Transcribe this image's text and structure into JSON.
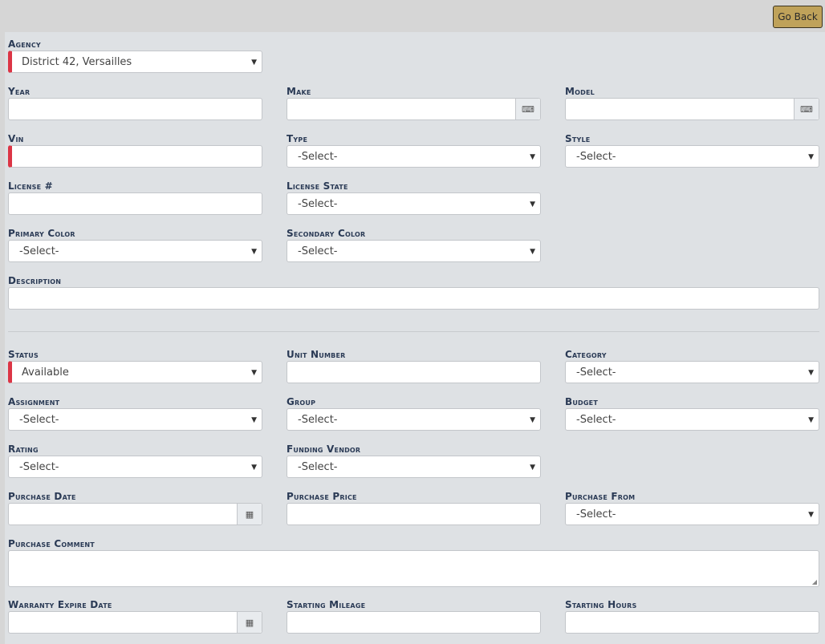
{
  "header": {
    "go_back": "Go Back"
  },
  "fields": {
    "agency": {
      "label": "Agency",
      "value": "District 42, Versailles"
    },
    "year": {
      "label": "Year",
      "value": ""
    },
    "make": {
      "label": "Make",
      "value": ""
    },
    "model": {
      "label": "Model",
      "value": ""
    },
    "vin": {
      "label": "Vin",
      "value": ""
    },
    "type": {
      "label": "Type",
      "value": "-Select-"
    },
    "style": {
      "label": "Style",
      "value": "-Select-"
    },
    "license": {
      "label": "License #",
      "value": ""
    },
    "license_state": {
      "label": "License State",
      "value": "-Select-"
    },
    "primary_color": {
      "label": "Primary Color",
      "value": "-Select-"
    },
    "secondary_color": {
      "label": "Secondary Color",
      "value": "-Select-"
    },
    "description": {
      "label": "Description",
      "value": ""
    },
    "status": {
      "label": "Status",
      "value": "Available"
    },
    "unit_number": {
      "label": "Unit Number",
      "value": ""
    },
    "category": {
      "label": "Category",
      "value": "-Select-"
    },
    "assignment": {
      "label": "Assignment",
      "value": "-Select-"
    },
    "group": {
      "label": "Group",
      "value": "-Select-"
    },
    "budget": {
      "label": "Budget",
      "value": "-Select-"
    },
    "rating": {
      "label": "Rating",
      "value": "-Select-"
    },
    "funding_vendor": {
      "label": "Funding Vendor",
      "value": "-Select-"
    },
    "purchase_date": {
      "label": "Purchase Date",
      "value": ""
    },
    "purchase_price": {
      "label": "Purchase Price",
      "value": ""
    },
    "purchase_from": {
      "label": "Purchase From",
      "value": "-Select-"
    },
    "purchase_comment": {
      "label": "Purchase Comment",
      "value": ""
    },
    "warranty_expire_date": {
      "label": "Warranty Expire Date",
      "value": ""
    },
    "starting_mileage": {
      "label": "Starting Mileage",
      "value": ""
    },
    "starting_hours": {
      "label": "Starting Hours",
      "value": ""
    }
  },
  "colors": {
    "required_marker": "#dc3545",
    "go_back_bg": "#bfa25a",
    "label": "#2a3a55"
  },
  "icons": {
    "keyboard": "keyboard-icon",
    "calendar": "calendar-icon",
    "dropdown": "caret-down-icon"
  }
}
